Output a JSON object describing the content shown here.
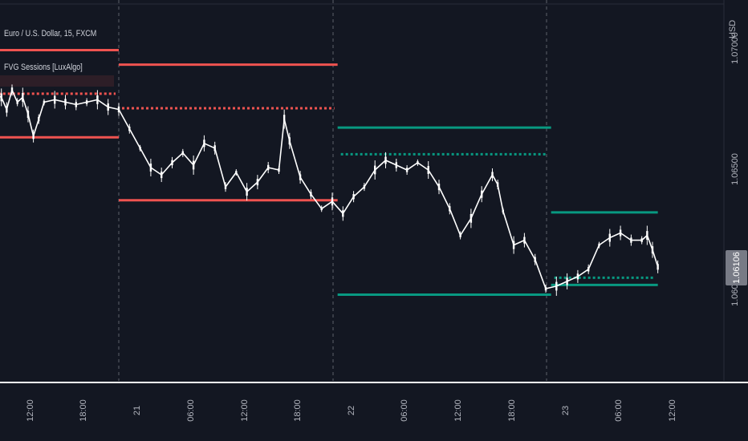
{
  "header": {
    "symbol_line": "Euro / U.S. Dollar, 15, FXCM",
    "indicator_name": "FVG Sessions [LuxAlgo]"
  },
  "price_axis": {
    "currency": "USD",
    "ticks": [
      "1.07000",
      "1.06500",
      "1.06000"
    ],
    "last_price_label": "1.06106"
  },
  "time_axis": {
    "labels": [
      "12:00",
      "18:00",
      "21",
      "06:00",
      "12:00",
      "18:00",
      "22",
      "06:00",
      "12:00",
      "18:00",
      "23",
      "06:00",
      "12:00"
    ]
  },
  "colors": {
    "background": "#131722",
    "bearish": "#ef5350",
    "bullish": "#089981",
    "candle": "#ffffff",
    "axis_text": "#b2b5be",
    "last_price_bg": "#787b86"
  },
  "chart_data": {
    "type": "line",
    "title": "Euro / U.S. Dollar, 15, FXCM",
    "ylabel": "USD",
    "ylim": [
      1.058,
      1.0718
    ],
    "x_ticks": [
      "12:00",
      "18:00",
      "21",
      "06:00",
      "12:00",
      "18:00",
      "22",
      "06:00",
      "12:00",
      "18:00",
      "23",
      "06:00",
      "12:00"
    ],
    "series": [
      {
        "name": "price",
        "points": [
          [
            -2,
            1.0683
          ],
          [
            -1,
            1.0681
          ],
          [
            -0.5,
            1.0676
          ],
          [
            0,
            1.0684
          ],
          [
            0.5,
            1.0679
          ],
          [
            1,
            1.0681
          ],
          [
            1.5,
            1.0674
          ],
          [
            2,
            1.0665
          ],
          [
            2.5,
            1.0672
          ],
          [
            3,
            1.0679
          ],
          [
            4,
            1.068
          ],
          [
            5,
            1.0679
          ],
          [
            6,
            1.0678
          ],
          [
            7,
            1.0679
          ],
          [
            8,
            1.068
          ],
          [
            9,
            1.0677
          ],
          [
            10,
            1.0676
          ],
          [
            11,
            1.0668
          ],
          [
            12,
            1.066
          ],
          [
            13,
            1.0652
          ],
          [
            14,
            1.0649
          ],
          [
            15,
            1.0654
          ],
          [
            16,
            1.0658
          ],
          [
            17,
            1.0653
          ],
          [
            18,
            1.0662
          ],
          [
            19,
            1.066
          ],
          [
            20,
            1.0644
          ],
          [
            21,
            1.065
          ],
          [
            22,
            1.0642
          ],
          [
            23,
            1.0646
          ],
          [
            24,
            1.0652
          ],
          [
            25,
            1.0651
          ],
          [
            25.5,
            1.0672
          ],
          [
            26,
            1.0663
          ],
          [
            27,
            1.0648
          ],
          [
            28,
            1.0641
          ],
          [
            29,
            1.0635
          ],
          [
            30,
            1.0638
          ],
          [
            31,
            1.0633
          ],
          [
            32,
            1.064
          ],
          [
            33,
            1.0644
          ],
          [
            34,
            1.0651
          ],
          [
            35,
            1.0655
          ],
          [
            36,
            1.0653
          ],
          [
            37,
            1.0651
          ],
          [
            38,
            1.0654
          ],
          [
            39,
            1.0651
          ],
          [
            40,
            1.0644
          ],
          [
            41,
            1.0635
          ],
          [
            42,
            1.0624
          ],
          [
            43,
            1.0631
          ],
          [
            44,
            1.0641
          ],
          [
            45,
            1.0649
          ],
          [
            45.5,
            1.0645
          ],
          [
            46,
            1.0634
          ],
          [
            47,
            1.062
          ],
          [
            48,
            1.0622
          ],
          [
            49,
            1.0614
          ],
          [
            50,
            1.0602
          ],
          [
            51,
            1.0603
          ],
          [
            52,
            1.0605
          ],
          [
            53,
            1.0607
          ],
          [
            54,
            1.061
          ],
          [
            55,
            1.062
          ],
          [
            56,
            1.0623
          ],
          [
            57,
            1.0625
          ],
          [
            58,
            1.0622
          ],
          [
            59,
            1.0622
          ],
          [
            59.5,
            1.0624
          ],
          [
            60,
            1.0618
          ],
          [
            60.5,
            1.0611
          ]
        ]
      }
    ],
    "sessions": [
      {
        "type": "bearish",
        "start": -2.5,
        "end": 10,
        "high": 1.07005,
        "mid": 1.06825,
        "low": 1.06645
      },
      {
        "type": "bearish",
        "start": 10,
        "end": 30.5,
        "high": 1.06945,
        "mid": 1.06765,
        "low": 1.06385
      },
      {
        "type": "bullish",
        "start": 30.5,
        "end": 50.5,
        "high": 1.06685,
        "mid": 1.06575,
        "low": 1.05995
      },
      {
        "type": "bullish",
        "start": 50.5,
        "end": 60.5,
        "high": 1.06335,
        "mid": 1.06065,
        "low": 1.06035
      }
    ],
    "last_price": 1.06106,
    "last_price_label": "1.06106"
  }
}
